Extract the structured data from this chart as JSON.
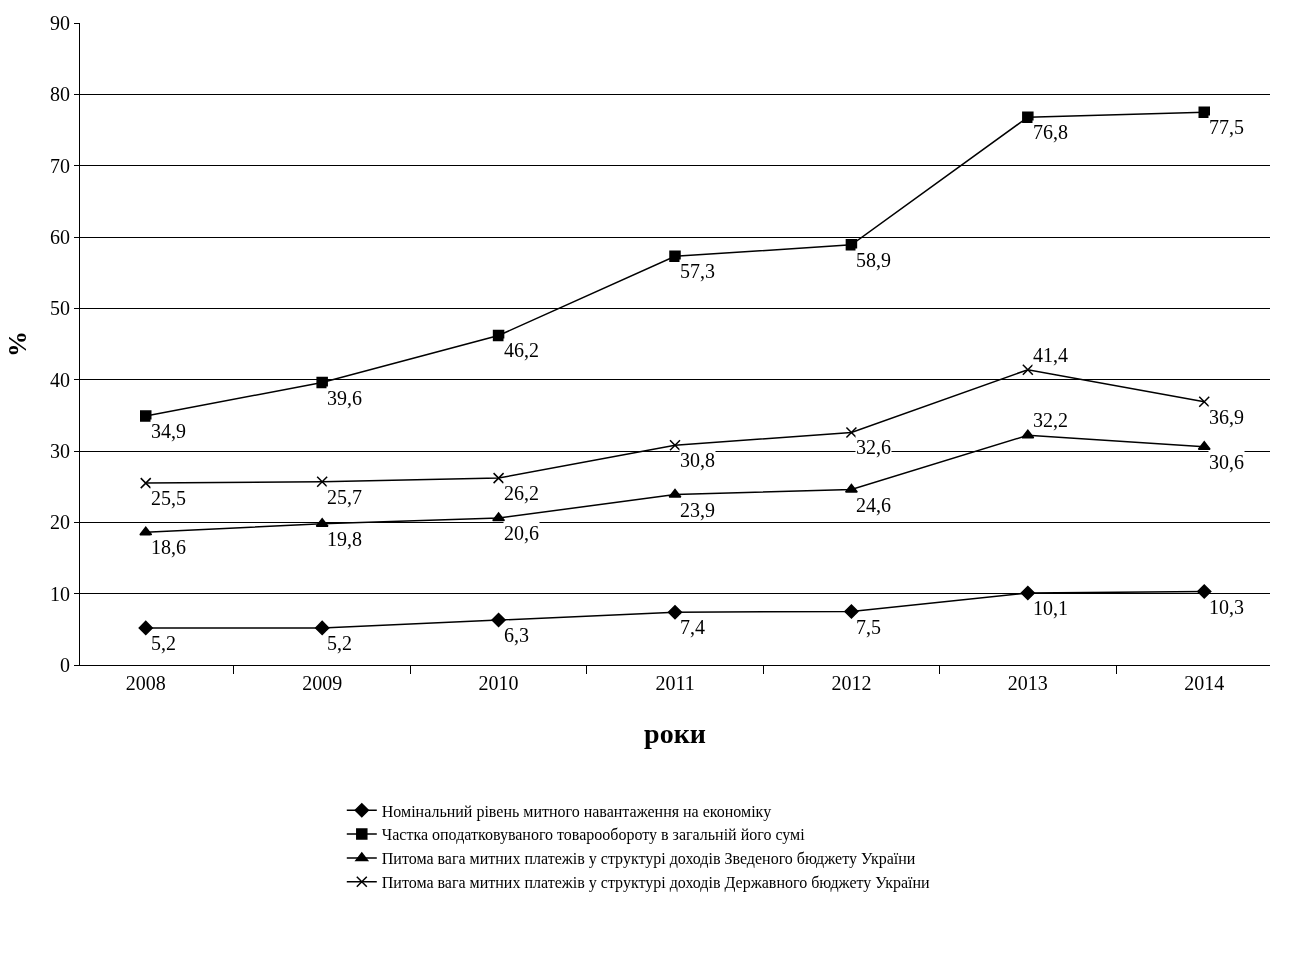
{
  "chart_data": {
    "type": "line",
    "xlabel": "роки",
    "ylabel": "%",
    "categories": [
      "2008",
      "2009",
      "2010",
      "2011",
      "2012",
      "2013",
      "2014"
    ],
    "series": [
      {
        "name": "Номінальний рівень митного навантаження на економіку",
        "color": "#000000",
        "marker": "diamond",
        "values": [
          5.2,
          5.2,
          6.3,
          7.4,
          7.5,
          10.1,
          10.3
        ],
        "value_labels": [
          "5,2",
          "5,2",
          "6,3",
          "7,4",
          "7,5",
          "10,1",
          "10,3"
        ]
      },
      {
        "name": "Частка оподатковуваного товарообороту в загальній його сумі",
        "color": "#000000",
        "marker": "square",
        "values": [
          34.9,
          39.6,
          46.2,
          57.3,
          58.9,
          76.8,
          77.5
        ],
        "value_labels": [
          "34,9",
          "39,6",
          "46,2",
          "57,3",
          "58,9",
          "76,8",
          "77,5"
        ]
      },
      {
        "name": "Питома вага митних платежів у структурі доходів Зведеного бюджету України",
        "color": "#000000",
        "marker": "triangle",
        "values": [
          18.6,
          19.8,
          20.6,
          23.9,
          24.6,
          32.2,
          30.6
        ],
        "value_labels": [
          "18,6",
          "19,8",
          "20,6",
          "23,9",
          "24,6",
          "32,2",
          "30,6"
        ]
      },
      {
        "name": "Питома вага митних платежів у структурі доходів Державного бюджету України",
        "color": "#000000",
        "marker": "cross",
        "values": [
          25.5,
          25.7,
          26.2,
          30.8,
          32.6,
          41.4,
          36.9
        ],
        "value_labels": [
          "25,5",
          "25,7",
          "26,2",
          "30,8",
          "32,6",
          "41,4",
          "36,9"
        ]
      }
    ],
    "ylim": [
      0,
      90
    ],
    "yticks": [
      0,
      10,
      20,
      30,
      40,
      50,
      60,
      70,
      80,
      90
    ],
    "grid": "y",
    "legend": "bottom",
    "line_style": "solid"
  }
}
